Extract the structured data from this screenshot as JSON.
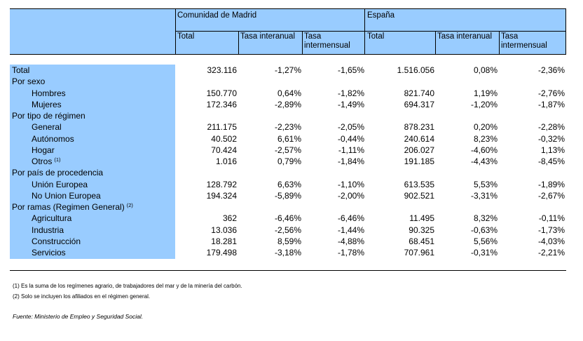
{
  "header": {
    "group_madrid": "Comunidad de Madrid",
    "group_espana": "España",
    "columns": [
      "Total",
      "Tasa interanual",
      "Tasa intermensual",
      "Total",
      "Tasa interanual",
      "Tasa intermensual"
    ]
  },
  "rows": [
    {
      "label": "Total",
      "indent": 0,
      "values": [
        "323.116",
        "-1,27%",
        "-1,65%",
        "1.516.056",
        "0,08%",
        "-2,36%"
      ]
    },
    {
      "label": "Por sexo",
      "indent": 0,
      "values": []
    },
    {
      "label": "Hombres",
      "indent": 1,
      "values": [
        "150.770",
        "0,64%",
        "-1,82%",
        "821.740",
        "1,19%",
        "-2,76%"
      ]
    },
    {
      "label": "Mujeres",
      "indent": 1,
      "values": [
        "172.346",
        "-2,89%",
        "-1,49%",
        "694.317",
        "-1,20%",
        "-1,87%"
      ]
    },
    {
      "label": "Por tipo de régimen",
      "indent": 0,
      "values": []
    },
    {
      "label": "General",
      "indent": 1,
      "values": [
        "211.175",
        "-2,23%",
        "-2,05%",
        "878.231",
        "0,20%",
        "-2,28%"
      ]
    },
    {
      "label": "Autónomos",
      "indent": 1,
      "values": [
        "40.502",
        "6,61%",
        "-0,44%",
        "240.614",
        "8,23%",
        "-0,32%"
      ]
    },
    {
      "label": "Hogar",
      "indent": 1,
      "values": [
        "70.424",
        "-2,57%",
        "-1,11%",
        "206.027",
        "-4,60%",
        "1,13%"
      ]
    },
    {
      "label": "Otros",
      "sup": "(1)",
      "indent": 1,
      "values": [
        "1.016",
        "0,79%",
        "-1,84%",
        "191.185",
        "-4,43%",
        "-8,45%"
      ]
    },
    {
      "label": "Por país de procedencia",
      "indent": 0,
      "values": []
    },
    {
      "label": "Unión Europea",
      "indent": 1,
      "values": [
        "128.792",
        "6,63%",
        "-1,10%",
        "613.535",
        "5,53%",
        "-1,89%"
      ]
    },
    {
      "label": "No Union Europea",
      "indent": 1,
      "values": [
        "194.324",
        "-5,89%",
        "-2,00%",
        "902.521",
        "-3,31%",
        "-2,67%"
      ]
    },
    {
      "label": "Por ramas (Regimen General)",
      "sup": "(2)",
      "indent": 0,
      "values": []
    },
    {
      "label": "Agricultura",
      "indent": 1,
      "values": [
        "362",
        "-6,46%",
        "-6,46%",
        "11.495",
        "8,32%",
        "-0,11%"
      ]
    },
    {
      "label": "Industria",
      "indent": 1,
      "values": [
        "13.036",
        "-2,56%",
        "-1,44%",
        "90.325",
        "-0,63%",
        "-1,73%"
      ]
    },
    {
      "label": "Construcción",
      "indent": 1,
      "values": [
        "18.281",
        "8,59%",
        "-4,88%",
        "68.451",
        "5,56%",
        "-4,03%"
      ]
    },
    {
      "label": "Servicios",
      "indent": 1,
      "values": [
        "179.498",
        "-3,18%",
        "-1,78%",
        "707.961",
        "-0,31%",
        "-2,21%"
      ]
    }
  ],
  "notes": [
    "(1) Es la suma de los regímenes  agrario, de trabajadores del mar y de la minería del carbón.",
    "(2) Solo se incluyen los afiliados en el régimen general."
  ],
  "source": "Fuente: Ministerio de Empleo y Seguridad Social.",
  "colors": {
    "header_bg": "#99ccff",
    "label_bg": "#99ccff",
    "rule": "#000000"
  }
}
